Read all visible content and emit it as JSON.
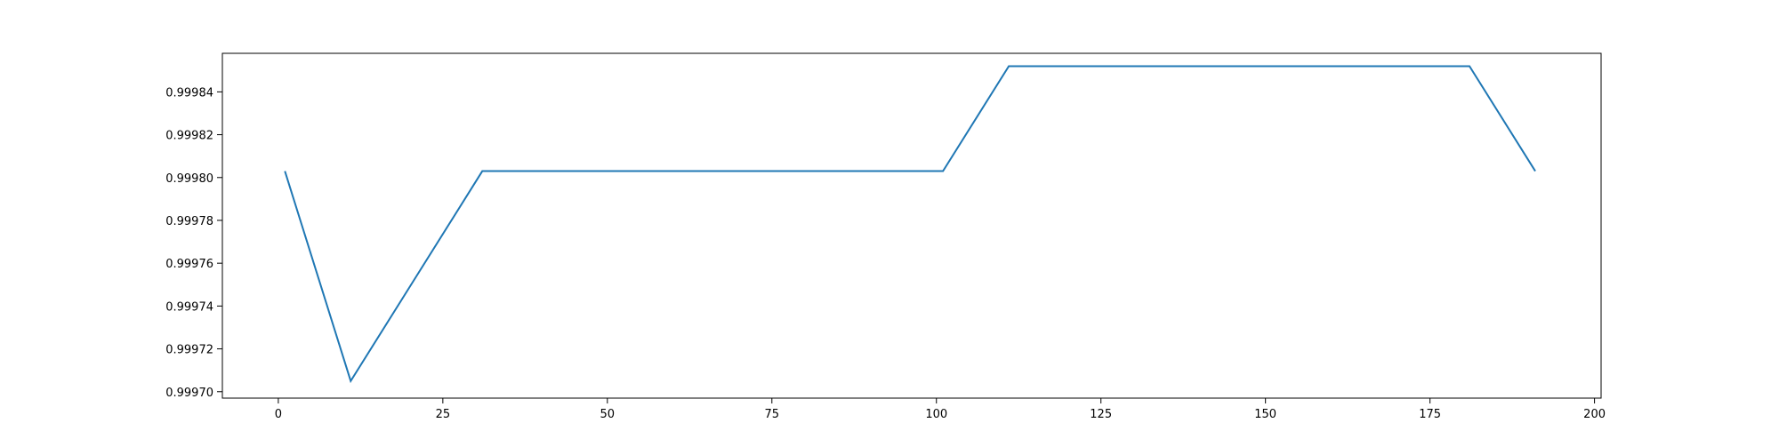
{
  "chart_data": {
    "type": "line",
    "title": "",
    "xlabel": "",
    "ylabel": "",
    "xlim": [
      -8.5,
      201
    ],
    "ylim": [
      0.999697,
      0.999858
    ],
    "x_ticks": [
      0,
      25,
      50,
      75,
      100,
      125,
      150,
      175,
      200
    ],
    "x_tick_labels": [
      "0",
      "25",
      "50",
      "75",
      "100",
      "125",
      "150",
      "175",
      "200"
    ],
    "y_ticks": [
      0.9997,
      0.99972,
      0.99974,
      0.99976,
      0.99978,
      0.9998,
      0.99982,
      0.99984
    ],
    "y_tick_labels": [
      "0.99970",
      "0.99972",
      "0.99974",
      "0.99976",
      "0.99978",
      "0.99980",
      "0.99982",
      "0.99984"
    ],
    "grid": false,
    "legend": "none",
    "series": [
      {
        "color": "#1f77b4",
        "x": [
          1,
          11,
          21,
          31,
          41,
          51,
          61,
          71,
          81,
          91,
          101,
          111,
          121,
          131,
          141,
          151,
          161,
          171,
          181,
          191
        ],
        "y": [
          0.999803,
          0.999705,
          0.999754,
          0.999803,
          0.999803,
          0.999803,
          0.999803,
          0.999803,
          0.999803,
          0.999803,
          0.999803,
          0.999852,
          0.999852,
          0.999852,
          0.999852,
          0.999852,
          0.999852,
          0.999852,
          0.999852,
          0.999803
        ]
      }
    ]
  }
}
